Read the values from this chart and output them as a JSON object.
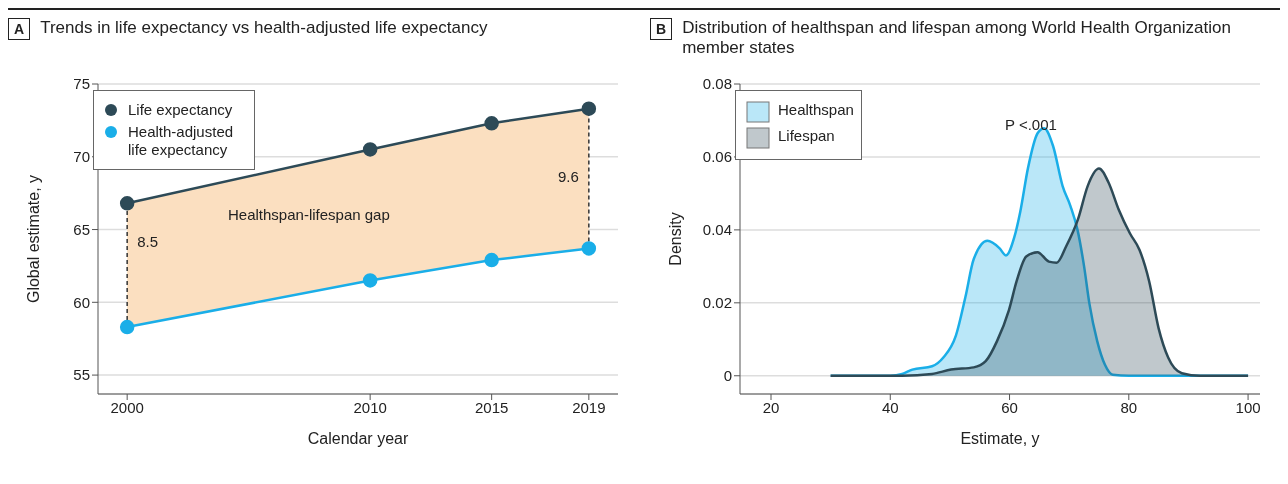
{
  "chart_data": [
    {
      "type": "line",
      "title": "Trends in life expectancy vs health-adjusted life expectancy",
      "annotations": [
        "A",
        "Healthspan-lifespan gap",
        {
          "text": "8.5",
          "x": 2000,
          "y": 64.2
        },
        {
          "text": "9.6",
          "x": 2019,
          "y": 68.6
        }
      ],
      "xlabel": "Calendar year",
      "ylabel": "Global estimate, y",
      "x": [
        2000,
        2010,
        2015,
        2019
      ],
      "xlim": [
        1998.8,
        2020.2
      ],
      "xticks": [
        2000,
        2010,
        2015,
        2019
      ],
      "ylim": [
        53.7,
        75
      ],
      "yticks": [
        55,
        60,
        65,
        70,
        75
      ],
      "grid": "y",
      "legend": "top left",
      "series": [
        {
          "name": "Life expectancy",
          "marker": "circle",
          "color": "#2d4a57",
          "values": [
            66.8,
            70.5,
            72.3,
            73.3
          ]
        },
        {
          "name": "Health-adjusted life expectancy",
          "marker": "circle",
          "color": "#1aaee8",
          "values": [
            58.3,
            61.5,
            62.9,
            63.7
          ]
        },
        {
          "type": "area",
          "color": "#fbdfc0",
          "values": [
            66.8,
            70.5,
            72.3,
            73.3
          ]
        }
      ]
    },
    {
      "type": "area",
      "title": "Distribution of healthspan and lifespan among World Health Organization member states",
      "annotations": [
        "B",
        "P <.001"
      ],
      "xlabel": "Estimate, y",
      "ylabel": "Density",
      "xlim": [
        14.8,
        102
      ],
      "xticks": [
        20,
        40,
        60,
        80,
        100
      ],
      "ylim": [
        -0.005,
        0.08
      ],
      "yticks": [
        0,
        0.02,
        0.04,
        0.06,
        0.08
      ],
      "grid": "y",
      "legend": "top left",
      "marker": "none",
      "series": [
        {
          "name": "Healthspan",
          "color": "#1aaee8",
          "x": [
            30,
            40,
            42,
            43.7,
            47,
            48.9,
            51,
            52.6,
            54,
            56.3,
            58.3,
            59.4,
            60.8,
            61.8,
            63.1,
            64.7,
            65.8,
            67.3,
            68.9,
            70.2,
            71.4,
            72.5,
            73.4,
            74.7,
            76,
            77.3,
            80,
            100
          ],
          "values": [
            0,
            0,
            0.0005,
            0.0017,
            0.0026,
            0.005,
            0.011,
            0.0216,
            0.032,
            0.037,
            0.035,
            0.033,
            0.038,
            0.045,
            0.057,
            0.0665,
            0.0679,
            0.063,
            0.052,
            0.0466,
            0.04,
            0.03,
            0.0197,
            0.0095,
            0.003,
            0.0003,
            0,
            0
          ]
        },
        {
          "name": "Lifespan",
          "color": "#2d4a57",
          "x": [
            30,
            42,
            47,
            50.2,
            54,
            56,
            57.9,
            59.9,
            61.2,
            62.8,
            64.7,
            66.6,
            67.9,
            69.5,
            71.5,
            73.1,
            75,
            76.6,
            78.3,
            80.2,
            81.8,
            83.4,
            85,
            86.6,
            88.9,
            92,
            100
          ],
          "values": [
            0,
            0,
            0.0005,
            0.0017,
            0.0023,
            0.004,
            0.0095,
            0.018,
            0.026,
            0.0327,
            0.0339,
            0.0313,
            0.031,
            0.0355,
            0.043,
            0.052,
            0.0568,
            0.053,
            0.0456,
            0.039,
            0.0345,
            0.026,
            0.013,
            0.005,
            0.0007,
            0,
            0
          ]
        }
      ]
    }
  ]
}
